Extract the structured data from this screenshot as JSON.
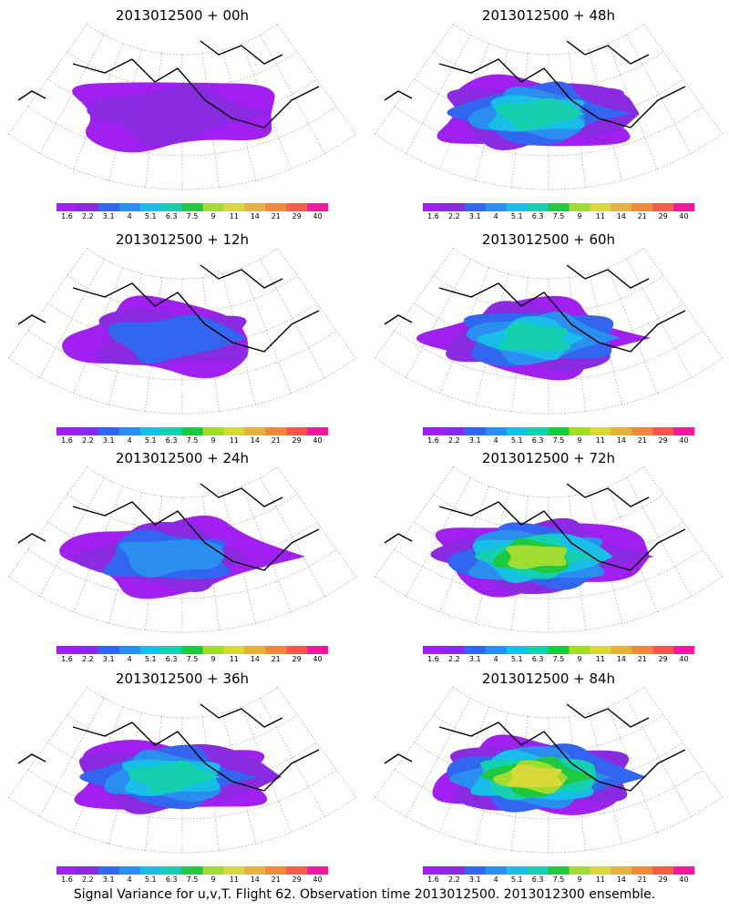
{
  "footer": "Signal Variance for u,v,T. Flight 62. Observation time 2013012500. 2013012300 ensemble.",
  "colorbar": {
    "labels": [
      "1.6",
      "2.2",
      "3.1",
      "4",
      "5.1",
      "6.3",
      "7.5",
      "9",
      "11",
      "14",
      "21",
      "29",
      "40"
    ],
    "colors": [
      "#a020f0",
      "#8a2be2",
      "#3366ee",
      "#2a8df0",
      "#18bde8",
      "#14cfb0",
      "#1ec840",
      "#a0dc30",
      "#d8d83a",
      "#e4b040",
      "#f08a3a",
      "#f45a4a",
      "#f01aa0"
    ]
  },
  "panels": [
    {
      "title": "2013012500 + 00h"
    },
    {
      "title": "2013012500 + 48h"
    },
    {
      "title": "2013012500 + 12h"
    },
    {
      "title": "2013012500 + 60h"
    },
    {
      "title": "2013012500 + 24h"
    },
    {
      "title": "2013012500 + 72h"
    },
    {
      "title": "2013012500 + 36h"
    },
    {
      "title": "2013012500 + 84h"
    }
  ]
}
